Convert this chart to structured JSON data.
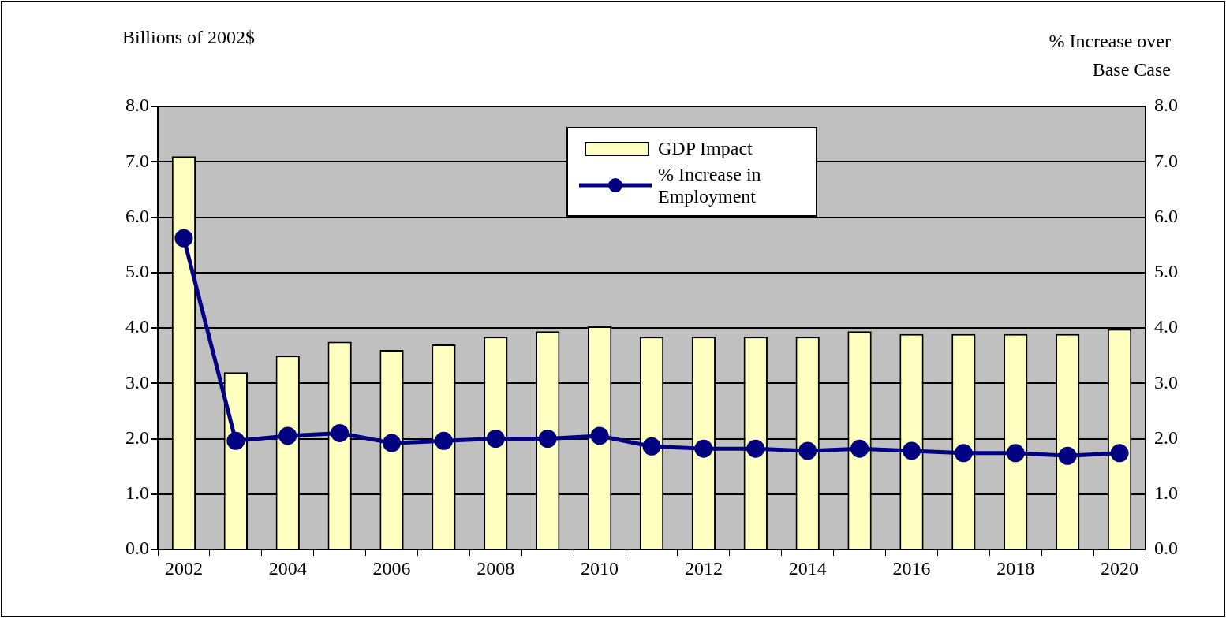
{
  "chart_data": {
    "type": "bar",
    "ylabel": "Billions of 2002$",
    "y2label": "% Increase over Base Case",
    "categories": [
      "2002",
      null,
      "2004",
      null,
      "2006",
      null,
      "2008",
      null,
      "2010",
      null,
      "2012",
      null,
      "2014",
      null,
      "2016",
      null,
      "2018",
      null,
      "2020"
    ],
    "series": [
      {
        "name": "GDP Impact",
        "color": "#ffffc0",
        "values": [
          7.1,
          3.2,
          3.5,
          3.75,
          3.6,
          3.7,
          3.84,
          3.94,
          4.03,
          3.84,
          3.84,
          3.84,
          3.84,
          3.94,
          3.89,
          3.89,
          3.89,
          3.89,
          3.98
        ]
      },
      {
        "name": "% Increase in Employment",
        "type": "line",
        "axis": "y2",
        "color": "#000080",
        "values": [
          5.62,
          1.96,
          2.05,
          2.1,
          1.92,
          1.96,
          2.0,
          2.0,
          2.05,
          1.86,
          1.82,
          1.82,
          1.78,
          1.82,
          1.78,
          1.74,
          1.74,
          1.69,
          1.74
        ]
      }
    ],
    "ylim": [
      0,
      8
    ],
    "yticks": [
      {
        "value": 0,
        "label": "0.0"
      },
      {
        "value": 1,
        "label": "1.0"
      },
      {
        "value": 2,
        "label": "2.0"
      },
      {
        "value": 3,
        "label": "3.0"
      },
      {
        "value": 4,
        "label": "4.0"
      },
      {
        "value": 5,
        "label": "5.0"
      },
      {
        "value": 6,
        "label": "6.0"
      },
      {
        "value": 7,
        "label": "7.0"
      },
      {
        "value": 8,
        "label": "8.0"
      }
    ],
    "y2lim": [
      0,
      8
    ],
    "y2ticks": [
      {
        "value": 0,
        "label": "0.0"
      },
      {
        "value": 1,
        "label": "1.0"
      },
      {
        "value": 2,
        "label": "2.0"
      },
      {
        "value": 3,
        "label": "3.0"
      },
      {
        "value": 4,
        "label": "4.0"
      },
      {
        "value": 5,
        "label": "5.0"
      },
      {
        "value": 6,
        "label": "6.0"
      },
      {
        "value": 7,
        "label": "7.0"
      },
      {
        "value": 8,
        "label": "8.0"
      }
    ],
    "grid": "y",
    "legend": "top",
    "marker": "circle",
    "line_style": "solid"
  }
}
